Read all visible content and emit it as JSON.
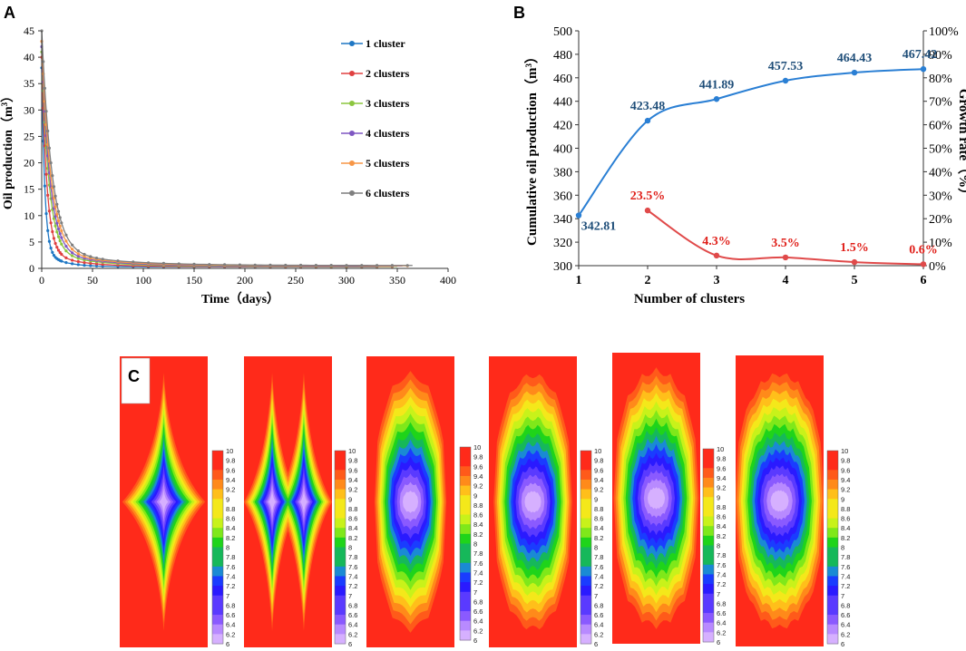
{
  "panels": {
    "a": "A",
    "b": "B",
    "c": "C"
  },
  "chart_data": [
    {
      "type": "line",
      "panel": "A",
      "title": "",
      "xlabel": "Time（days）",
      "ylabel": "Oil production（m",
      "ylabel_sup": "3",
      "ylabel_end": "）",
      "xlim": [
        0,
        400
      ],
      "ylim": [
        0,
        45
      ],
      "xticks": [
        "0",
        "50",
        "100",
        "150",
        "200",
        "250",
        "300",
        "350",
        "400"
      ],
      "yticks": [
        "0",
        "5",
        "10",
        "15",
        "20",
        "25",
        "30",
        "35",
        "40",
        "45"
      ],
      "legend": "right",
      "series": [
        {
          "name": "1 cluster",
          "color": "#1f77c4",
          "initial": 35,
          "final": 0.3,
          "decay_days": 3,
          "end_day": 330
        },
        {
          "name": "2 clusters",
          "color": "#e04040",
          "initial": 37,
          "final": 0.35,
          "decay_days": 5,
          "end_day": 345
        },
        {
          "name": "3 clusters",
          "color": "#8cc63f",
          "initial": 38,
          "final": 0.4,
          "decay_days": 7,
          "end_day": 350
        },
        {
          "name": "4 clusters",
          "color": "#7e57c2",
          "initial": 39,
          "final": 0.45,
          "decay_days": 8,
          "end_day": 355
        },
        {
          "name": "5 clusters",
          "color": "#f79646",
          "initial": 40,
          "final": 0.5,
          "decay_days": 9,
          "end_day": 360
        },
        {
          "name": "6 clusters",
          "color": "#7f7f7f",
          "initial": 42,
          "final": 0.55,
          "decay_days": 10,
          "end_day": 365
        }
      ]
    },
    {
      "type": "line",
      "panel": "B",
      "title": "",
      "xlabel": "Number of clusters",
      "ylabel": "Cumulative oil production（m",
      "ylabel_sup": "3",
      "ylabel_end": "）",
      "y2label": "Growth rate（%）",
      "categories": [
        "1",
        "2",
        "3",
        "4",
        "5",
        "6"
      ],
      "ylim": [
        300,
        500
      ],
      "y2lim": [
        0,
        100
      ],
      "yticks": [
        "300",
        "320",
        "340",
        "360",
        "380",
        "400",
        "420",
        "440",
        "460",
        "480",
        "500"
      ],
      "y2ticks": [
        "0%",
        "10%",
        "20%",
        "30%",
        "40%",
        "50%",
        "60%",
        "70%",
        "80%",
        "90%",
        "100%"
      ],
      "series": [
        {
          "name": "Cumulative oil production",
          "axis": "left",
          "color": "#2a7fd4",
          "label_color": "#1f4e79",
          "x": [
            1,
            2,
            3,
            4,
            5,
            6
          ],
          "values": [
            342.81,
            423.48,
            441.89,
            457.53,
            464.43,
            467.42
          ],
          "labels": [
            "342.81",
            "423.48",
            "441.89",
            "457.53",
            "464.43",
            "467.42"
          ]
        },
        {
          "name": "Growth rate",
          "axis": "right",
          "color": "#e04a4a",
          "label_color": "#e0201a",
          "x": [
            2,
            3,
            4,
            5,
            6
          ],
          "values": [
            23.5,
            4.3,
            3.5,
            1.5,
            0.6
          ],
          "labels": [
            "23.5%",
            "4.3%",
            "3.5%",
            "1.5%",
            "0.6%"
          ]
        }
      ]
    },
    {
      "type": "heatmap",
      "panel": "C",
      "title": "",
      "cluster_counts": [
        1,
        2,
        3,
        4,
        5,
        6
      ],
      "value_range": [
        6,
        10
      ],
      "colorbar_ticks": [
        "10",
        "9.8",
        "9.6",
        "9.4",
        "9.2",
        "9",
        "8.8",
        "8.6",
        "8.4",
        "8.2",
        "8",
        "7.8",
        "7.6",
        "7.4",
        "7.2",
        "7",
        "6.8",
        "6.6",
        "6.4",
        "6.2",
        "6"
      ],
      "colormap": [
        "#ff2a1a",
        "#ff5a1a",
        "#ff8a1a",
        "#ffbf1a",
        "#f4e81a",
        "#c8f21a",
        "#7fe81a",
        "#1fd41a",
        "#16b85a",
        "#1a8ad4",
        "#1a3cff",
        "#2a1aff",
        "#5a3aff",
        "#8a5aff",
        "#b88aff",
        "#d6b0ff"
      ]
    }
  ]
}
